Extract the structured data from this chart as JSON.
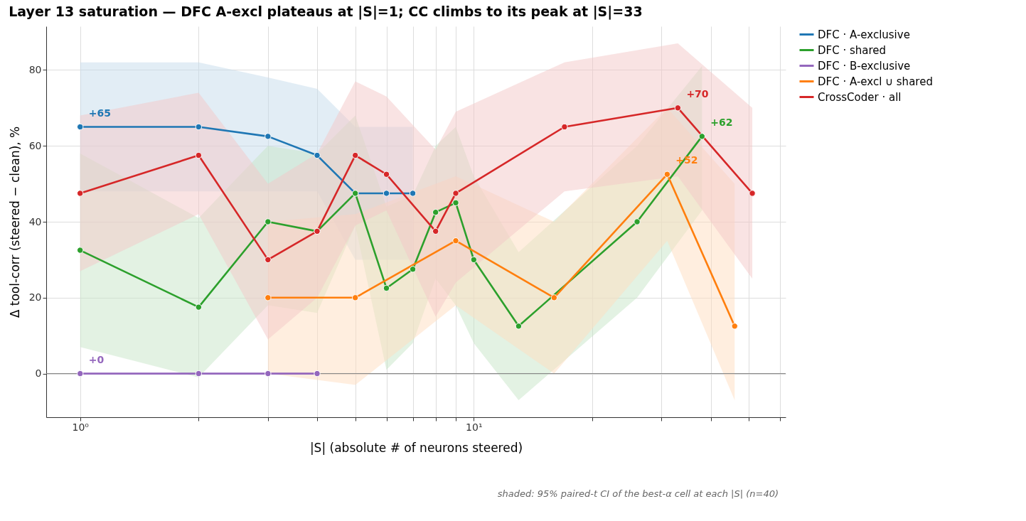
{
  "chart_data": {
    "type": "line",
    "title": "Layer 13 saturation — DFC A-excl plateaus at |S|=1; CC climbs to its peak at |S|=33",
    "xlabel": "|S| (absolute # of neurons steered)",
    "ylabel": "Δ tool-corr (steered − clean), %",
    "log": "x",
    "xlim": [
      0.82,
      62
    ],
    "xticks": [
      {
        "value": 1,
        "label": "10⁰"
      },
      {
        "value": 2,
        "label": null
      },
      {
        "value": 3,
        "label": null
      },
      {
        "value": 4,
        "label": null
      },
      {
        "value": 5,
        "label": null
      },
      {
        "value": 6,
        "label": null
      },
      {
        "value": 7,
        "label": null
      },
      {
        "value": 8,
        "label": null
      },
      {
        "value": 9,
        "label": null
      },
      {
        "value": 10,
        "label": "10¹"
      },
      {
        "value": 20,
        "label": null
      },
      {
        "value": 30,
        "label": null
      },
      {
        "value": 40,
        "label": null
      },
      {
        "value": 50,
        "label": null
      },
      {
        "value": 60,
        "label": null
      }
    ],
    "ylim": [
      -11.5,
      91.5
    ],
    "yticks": [
      0,
      20,
      40,
      60,
      80
    ],
    "grid": true,
    "legend": "right",
    "marker": "circle",
    "line_style": "solid",
    "series": [
      {
        "name": "DFC · A-exclusive",
        "color": "#1f77b4",
        "x": [
          1,
          2,
          3,
          4,
          5,
          6,
          7
        ],
        "values": [
          65,
          65,
          62.5,
          57.5,
          47.5,
          47.5,
          47.5
        ],
        "lower": [
          48,
          48,
          48,
          48,
          30,
          30,
          30
        ],
        "upper": [
          82,
          82,
          78,
          75,
          65,
          65,
          65
        ]
      },
      {
        "name": "DFC · shared",
        "color": "#2ca02c",
        "x": [
          1,
          2,
          3,
          4,
          5,
          6,
          7,
          8,
          9,
          10,
          13,
          26,
          38
        ],
        "values": [
          32.5,
          17.5,
          40,
          37.5,
          47.5,
          22.5,
          27.5,
          42.5,
          45,
          30,
          12.5,
          40,
          62.5
        ],
        "lower": [
          7,
          -1,
          18,
          16,
          39,
          1,
          8,
          25,
          18,
          8,
          -7,
          20,
          43
        ],
        "upper": [
          58,
          41,
          60,
          58,
          68,
          44,
          47,
          60,
          65,
          52,
          32,
          60,
          81
        ]
      },
      {
        "name": "DFC · B-exclusive",
        "color": "#9467bd",
        "x": [
          1,
          2,
          3,
          4
        ],
        "values": [
          0,
          0,
          0,
          0
        ]
      },
      {
        "name": "DFC · A-excl ∪ shared",
        "color": "#ff7f0e",
        "x": [
          3,
          5,
          9,
          16,
          31,
          46
        ],
        "values": [
          20,
          20,
          35,
          20,
          52.5,
          12.5
        ],
        "lower": [
          0,
          -3,
          18,
          0,
          35,
          -7
        ],
        "upper": [
          40,
          42,
          52,
          40,
          70,
          50
        ]
      },
      {
        "name": "CrossCoder · all",
        "color": "#d62728",
        "x": [
          1,
          2,
          3,
          4,
          5,
          6,
          8,
          9,
          17,
          33,
          51
        ],
        "values": [
          47.5,
          57.5,
          30,
          37.5,
          57.5,
          52.5,
          37.5,
          47.5,
          65,
          70,
          47.5
        ],
        "lower": [
          27,
          42,
          9,
          20,
          39,
          43,
          15,
          24,
          48,
          52,
          25
        ],
        "upper": [
          68,
          74,
          50,
          58,
          77,
          73,
          59,
          69,
          82,
          87,
          70
        ]
      }
    ],
    "ref_lines": [
      {
        "axis": "y",
        "value": 0,
        "label": null,
        "color": "#808080"
      }
    ],
    "annotations": [
      {
        "text": "+65",
        "x": 1,
        "y": 65
      },
      {
        "text": "+0",
        "x": 1,
        "y": 0
      },
      {
        "text": "+52",
        "x": 31,
        "y": 52.5
      },
      {
        "text": "+62",
        "x": 38,
        "y": 62.5
      },
      {
        "text": "+70",
        "x": 33,
        "y": 70
      },
      "shaded: 95% paired-t CI of the best-α cell at each |S| (n=40)"
    ]
  }
}
